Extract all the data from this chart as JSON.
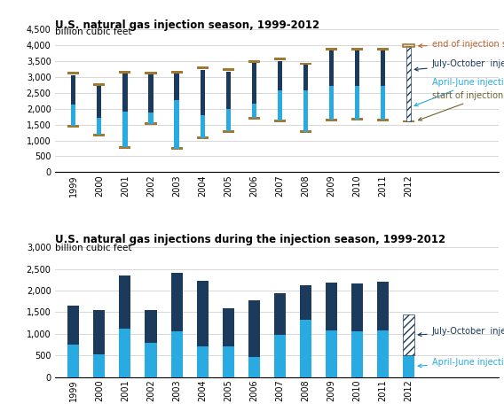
{
  "years": [
    1999,
    2000,
    2001,
    2002,
    2003,
    2004,
    2005,
    2006,
    2007,
    2008,
    2009,
    2010,
    2011,
    2012
  ],
  "top": {
    "title": "U.S. natural gas injection season, 1999-2012",
    "ylabel": "billion cubic feet",
    "start": [
      1450,
      1170,
      790,
      1530,
      750,
      1080,
      1290,
      1710,
      1620,
      1270,
      1650,
      1670,
      1650,
      1600
    ],
    "april_end": [
      2130,
      1700,
      1900,
      1880,
      2280,
      1800,
      2000,
      2170,
      2590,
      2590,
      2720,
      2730,
      2730,
      2500
    ],
    "july_end": [
      3060,
      2720,
      3130,
      3070,
      3130,
      3230,
      3170,
      3460,
      3510,
      3390,
      3830,
      3840,
      3840,
      3950
    ],
    "end_season": [
      3110,
      2760,
      3160,
      3120,
      3160,
      3280,
      3225,
      3490,
      3560,
      3415,
      3865,
      3875,
      3875,
      3975
    ],
    "ylim": [
      0,
      4500
    ],
    "yticks": [
      0,
      500,
      1000,
      1500,
      2000,
      2500,
      3000,
      3500,
      4000,
      4500
    ]
  },
  "bottom": {
    "title": "U.S. natural gas injections during the injection season, 1999-2012",
    "ylabel": "billion cubic feet",
    "april_june": [
      750,
      530,
      1110,
      800,
      1050,
      720,
      710,
      460,
      970,
      1320,
      1070,
      1060,
      1080,
      500
    ],
    "july_oct": [
      900,
      1020,
      1230,
      750,
      1350,
      1500,
      870,
      1310,
      970,
      800,
      1110,
      1110,
      1120,
      950
    ],
    "ylim": [
      0,
      3000
    ],
    "yticks": [
      0,
      500,
      1000,
      1500,
      2000,
      2500,
      3000
    ]
  },
  "colors": {
    "start_end": "#A07830",
    "april_june": "#29ABE2",
    "july_oct": "#1B3A5C"
  },
  "bg_color": "#FFFFFF",
  "grid_color": "#C8C8C8"
}
